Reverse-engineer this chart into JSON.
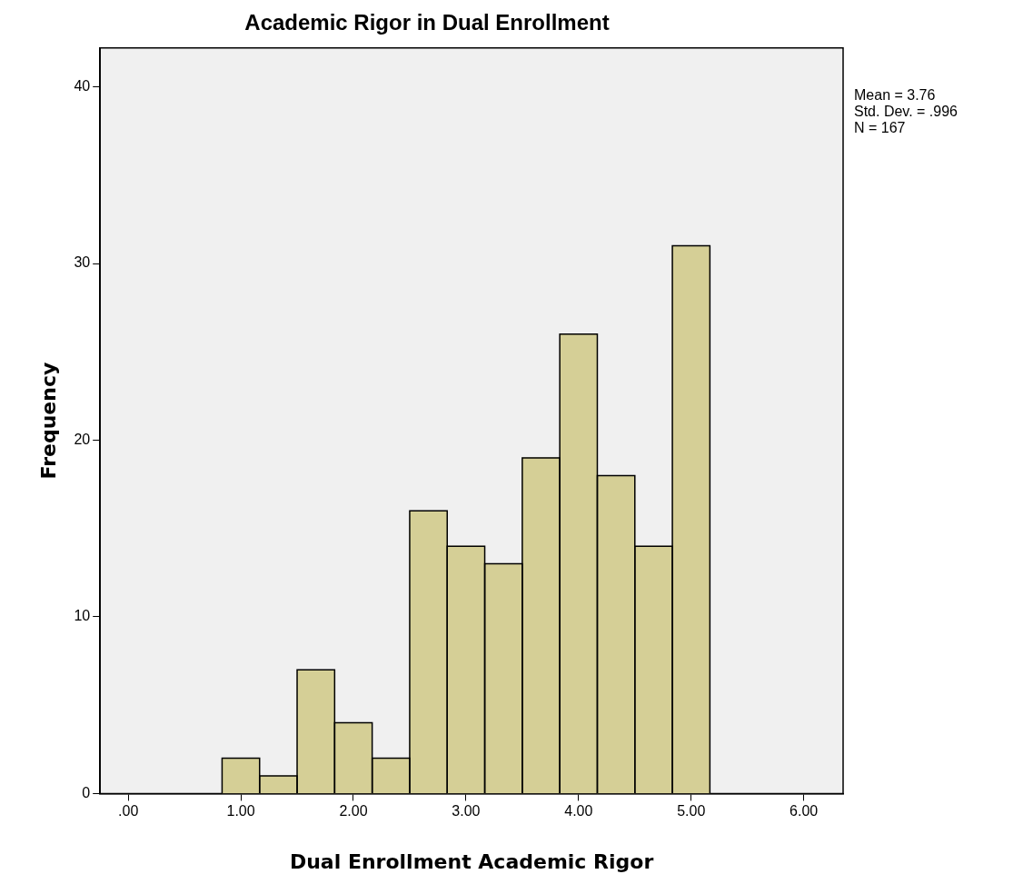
{
  "chart_data": {
    "type": "histogram",
    "title": "Academic Rigor in Dual Enrollment",
    "xlabel": "Dual Enrollment Academic Rigor",
    "ylabel": "Frequency",
    "bins": [
      0.8333,
      1.1667,
      1.5,
      1.8333,
      2.1667,
      2.5,
      2.8333,
      3.1667,
      3.5,
      3.8333,
      4.1667,
      4.5,
      4.8333,
      5.1667
    ],
    "values": [
      2,
      1,
      7,
      4,
      2,
      16,
      14,
      13,
      19,
      26,
      18,
      14,
      31
    ],
    "color": "#d5cf96",
    "xlim": [
      -0.25,
      6.35
    ],
    "ylim": [
      0,
      42.2
    ],
    "xticks": [
      {
        "value": 0,
        "label": ".00"
      },
      {
        "value": 1,
        "label": "1.00"
      },
      {
        "value": 2,
        "label": "2.00"
      },
      {
        "value": 3,
        "label": "3.00"
      },
      {
        "value": 4,
        "label": "4.00"
      },
      {
        "value": 5,
        "label": "5.00"
      },
      {
        "value": 6,
        "label": "6.00"
      }
    ],
    "yticks": [
      0,
      10,
      20,
      30,
      40
    ],
    "legend": false,
    "annotations": [
      "Mean = 3.76",
      "Std. Dev. = .996",
      "N = 167"
    ]
  }
}
